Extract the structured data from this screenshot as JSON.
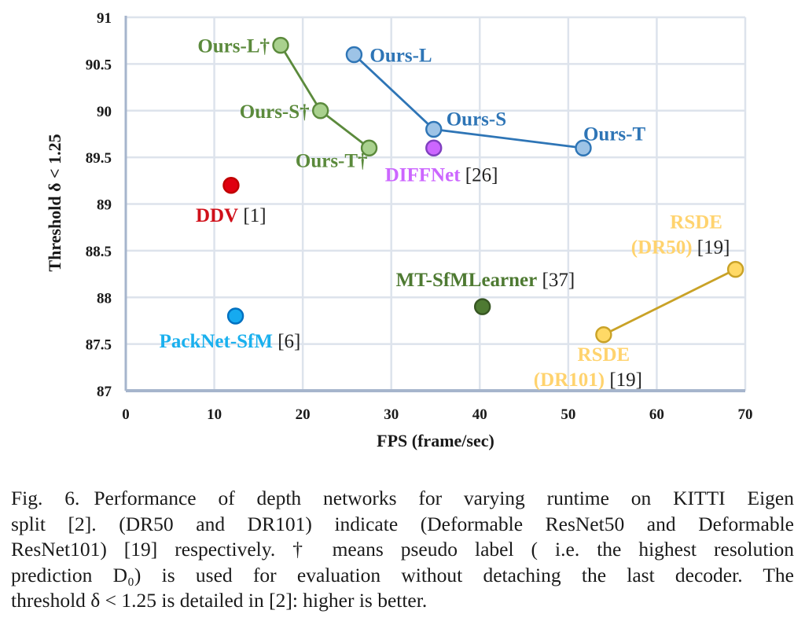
{
  "chart_data": {
    "type": "scatter",
    "title": "",
    "xlabel": "FPS (frame/sec)",
    "ylabel": "Threshold δ < 1.25",
    "xlim": [
      0,
      70
    ],
    "ylim": [
      87,
      91
    ],
    "x_ticks": [
      "0",
      "10",
      "20",
      "30",
      "40",
      "50",
      "60",
      "70"
    ],
    "y_ticks": [
      "87",
      "87.5",
      "88",
      "88.5",
      "89",
      "89.5",
      "90",
      "90.5",
      "91"
    ],
    "grid": true,
    "legend": "none (inline point labels)",
    "series": [
      {
        "name": "Ours (pseudo label †)",
        "color": "#5b8a3c",
        "fill": "#a9d18e",
        "connected": true,
        "points": [
          {
            "label": "Ours-L†",
            "ref": "",
            "x": 17.5,
            "y": 90.7
          },
          {
            "label": "Ours-S†",
            "ref": "",
            "x": 22.0,
            "y": 90.0
          },
          {
            "label": "Ours-T†",
            "ref": "",
            "x": 27.5,
            "y": 89.6
          }
        ]
      },
      {
        "name": "Ours",
        "color": "#2e75b6",
        "fill": "#9dc3e6",
        "connected": true,
        "points": [
          {
            "label": "Ours-L",
            "ref": "",
            "x": 25.8,
            "y": 90.6
          },
          {
            "label": "Ours-S",
            "ref": "",
            "x": 34.8,
            "y": 89.8
          },
          {
            "label": "Ours-T",
            "ref": "",
            "x": 51.7,
            "y": 89.6
          }
        ]
      },
      {
        "name": "DIFFNet",
        "color": "#7f3fbf",
        "fill": "#cc66ff",
        "label_color": "#cc66ff",
        "connected": false,
        "points": [
          {
            "label": "DIFFNet",
            "ref": "[26]",
            "x": 34.8,
            "y": 89.6
          }
        ]
      },
      {
        "name": "DDV",
        "color": "#c00000",
        "fill": "#e00010",
        "label_color": "#d0101a",
        "connected": false,
        "points": [
          {
            "label": "DDV",
            "ref": "[1]",
            "x": 11.9,
            "y": 89.2
          }
        ]
      },
      {
        "name": "PackNet-SfM",
        "color": "#0070c0",
        "fill": "#16aaf0",
        "label_color": "#1ab0ee",
        "connected": false,
        "points": [
          {
            "label": "PackNet-SfM",
            "ref": "[6]",
            "x": 12.4,
            "y": 87.8
          }
        ]
      },
      {
        "name": "MT-SfMLearner",
        "color": "#375623",
        "fill": "#4e7a32",
        "label_color": "#4e7a32",
        "connected": false,
        "points": [
          {
            "label": "MT-SfMLearner",
            "ref": "[37]",
            "x": 40.3,
            "y": 87.9
          }
        ]
      },
      {
        "name": "RSDE",
        "color": "#c9a227",
        "fill": "#ffd966",
        "label_color": "#ffd36e",
        "connected": true,
        "points": [
          {
            "label": "RSDE (DR101)",
            "ref": "[19]",
            "x": 54.0,
            "y": 87.6
          },
          {
            "label": "RSDE (DR50)",
            "ref": "[19]",
            "x": 68.9,
            "y": 88.3
          }
        ]
      }
    ]
  },
  "caption": {
    "fig_label": "Fig. 6.",
    "lines": [
      "Performance of depth networks for varying runtime on KITTI Eigen",
      "split [2]. (DR50 and DR101) indicate (Deformable ResNet50 and Deformable",
      "ResNet101) [19] respectively. † means pseudo label ( i.e. the highest resolution",
      "prediction D₀) is used for evaluation without detaching the last decoder. The",
      "threshold δ < 1.25 is detailed in [2]: higher is better."
    ]
  }
}
